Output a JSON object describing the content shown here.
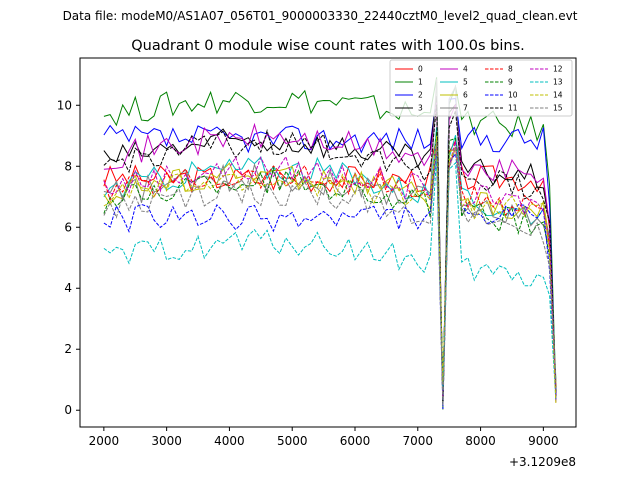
{
  "header": {
    "suptitle": "Data file: modeM0/AS1A07_056T01_9000003330_22440cztM0_level2_quad_clean.evt"
  },
  "chart_data": {
    "type": "line",
    "title": "Quadrant 0 module wise count rates with 100.0s bins.",
    "xlabel": "",
    "ylabel": "",
    "x_offset_label": "+3.1209e8",
    "xlim": [
      1620,
      9520
    ],
    "ylim": [
      -0.55,
      11.55
    ],
    "xticks": [
      2000,
      3000,
      4000,
      5000,
      6000,
      7000,
      8000,
      9000
    ],
    "yticks": [
      0,
      2,
      4,
      6,
      8,
      10
    ],
    "grid": false,
    "legend_position": "top-right",
    "legend_columns": 4,
    "x_start": 2000,
    "x_step": 100,
    "drop_points": {
      "x": [
        7400,
        9200
      ]
    },
    "peak_points": {
      "x": [
        7300,
        7600
      ]
    },
    "series": [
      {
        "name": "0",
        "color": "#ff0000",
        "dash": "solid",
        "base": 7.6,
        "slope": 0.0,
        "peak": 9.2
      },
      {
        "name": "1",
        "color": "#008000",
        "dash": "solid",
        "base": 9.7,
        "slope": 0.2,
        "peak": 11.0
      },
      {
        "name": "2",
        "color": "#0000ff",
        "dash": "solid",
        "base": 8.9,
        "slope": 0.0,
        "peak": 10.6
      },
      {
        "name": "3",
        "color": "#000000",
        "dash": "solid",
        "base": 8.2,
        "slope": 0.25,
        "peak": 10.4
      },
      {
        "name": "4",
        "color": "#bf00bf",
        "dash": "solid",
        "base": 8.3,
        "slope": 0.25,
        "peak": 10.4
      },
      {
        "name": "5",
        "color": "#00bfbf",
        "dash": "solid",
        "base": 7.2,
        "slope": 0.3,
        "peak": 9.4
      },
      {
        "name": "6",
        "color": "#bfbf00",
        "dash": "solid",
        "base": 7.1,
        "slope": 0.25,
        "peak": 9.0
      },
      {
        "name": "7",
        "color": "#808080",
        "dash": "solid",
        "base": 7.0,
        "slope": 0.25,
        "peak": 11.0
      },
      {
        "name": "8",
        "color": "#ff0000",
        "dash": "dashed",
        "base": 7.2,
        "slope": 0.2,
        "peak": 9.0
      },
      {
        "name": "9",
        "color": "#008000",
        "dash": "dashed",
        "base": 6.8,
        "slope": 0.3,
        "peak": 9.3
      },
      {
        "name": "10",
        "color": "#0000ff",
        "dash": "dashed",
        "base": 6.3,
        "slope": 0.0,
        "peak": 8.8
      },
      {
        "name": "11",
        "color": "#000000",
        "dash": "dashed",
        "base": 8.0,
        "slope": 0.3,
        "peak": 10.2
      },
      {
        "name": "12",
        "color": "#bf00bf",
        "dash": "dashed",
        "base": 7.3,
        "slope": 0.25,
        "peak": 9.2
      },
      {
        "name": "13",
        "color": "#00bfbf",
        "dash": "dashed",
        "base": 4.9,
        "slope": 0.25,
        "peak": 8.5
      },
      {
        "name": "14",
        "color": "#bfbf00",
        "dash": "dashed",
        "base": 7.0,
        "slope": 0.2,
        "peak": 9.0
      },
      {
        "name": "15",
        "color": "#808080",
        "dash": "dashed",
        "base": 6.5,
        "slope": 0.25,
        "peak": 9.0
      }
    ]
  }
}
